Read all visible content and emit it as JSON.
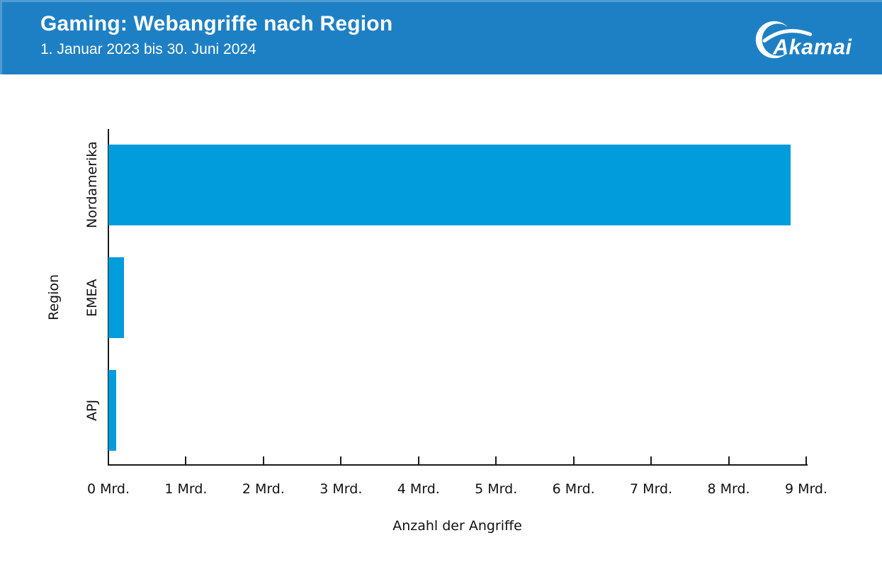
{
  "header": {
    "title": "Gaming: Webangriffe nach Region",
    "subtitle": "1. Januar 2023 bis 30. Juni 2024",
    "logo_text": "Akamai",
    "colors": {
      "background": "#1e80c4",
      "text": "#ffffff"
    }
  },
  "chart_data": {
    "type": "bar",
    "orientation": "horizontal",
    "title": "Gaming: Webangriffe nach Region",
    "subtitle": "1. Januar 2023 bis 30. Juni 2024",
    "categories": [
      "Nordamerika",
      "EMEA",
      "APJ"
    ],
    "values": [
      8.8,
      0.2,
      0.1
    ],
    "unit": "Mrd.",
    "xlabel": "Anzahl der Angriffe",
    "ylabel": "Region",
    "xlim": [
      0,
      9
    ],
    "x_ticks": [
      0,
      1,
      2,
      3,
      4,
      5,
      6,
      7,
      8,
      9
    ],
    "x_tick_labels": [
      "0 Mrd.",
      "1 Mrd.",
      "2 Mrd.",
      "3 Mrd.",
      "4 Mrd.",
      "5 Mrd.",
      "6 Mrd.",
      "7 Mrd.",
      "8 Mrd.",
      "9 Mrd."
    ],
    "bar_color": "#019cdb",
    "axis_color": "#1a1a1a",
    "grid": false,
    "legend": false
  }
}
